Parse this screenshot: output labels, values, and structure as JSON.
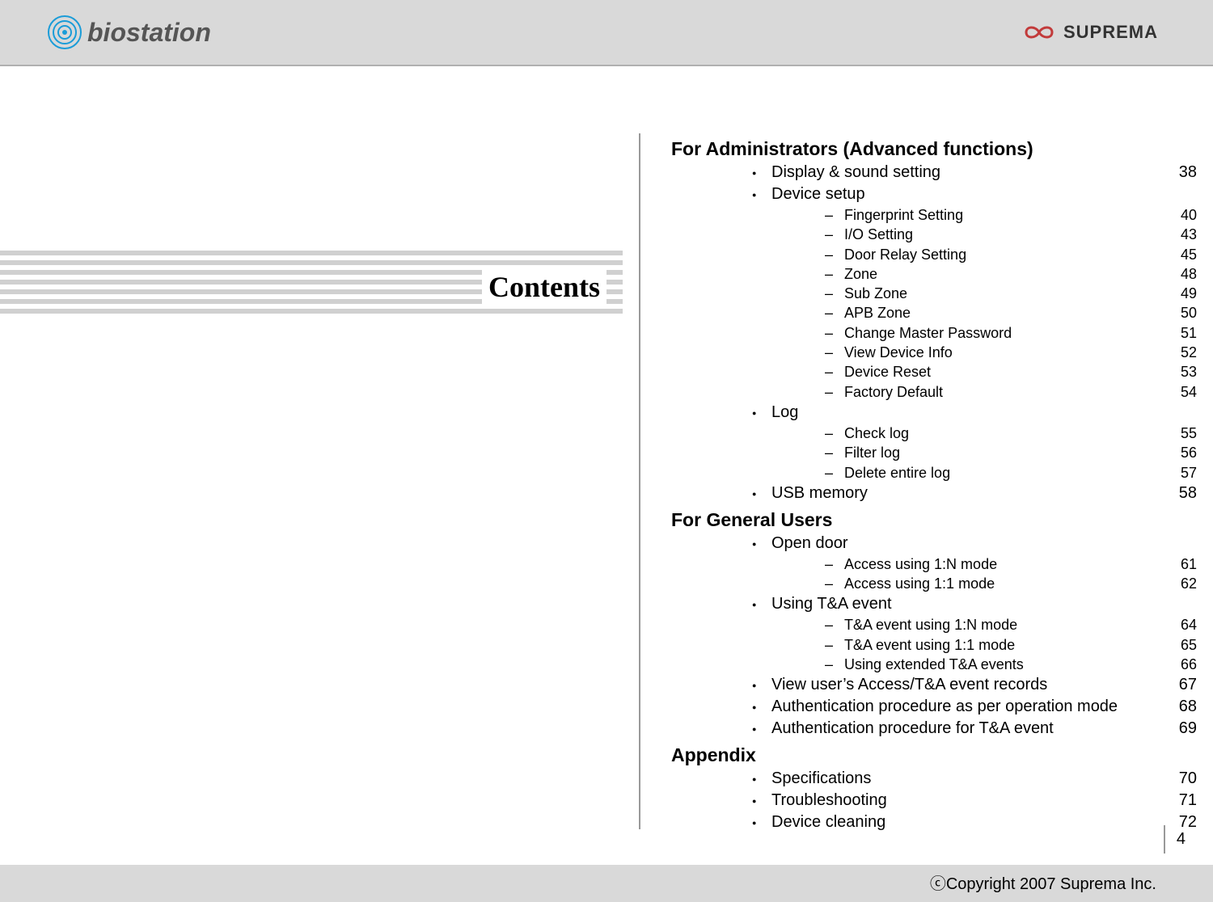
{
  "header": {
    "logo_left_text": "biostation",
    "logo_right_text": "SUPREMA"
  },
  "left_title": "Contents",
  "toc": {
    "sections": [
      {
        "title": "For Administrators (Advanced functions)",
        "items": [
          {
            "label": "Display & sound setting",
            "page": "38",
            "level": 1
          },
          {
            "label": "Device setup",
            "page": "",
            "level": 1
          },
          {
            "label": "Fingerprint Setting",
            "page": "40",
            "level": 2
          },
          {
            "label": "I/O Setting",
            "page": "43",
            "level": 2
          },
          {
            "label": "Door Relay Setting",
            "page": "45",
            "level": 2
          },
          {
            "label": "Zone",
            "page": "48",
            "level": 2
          },
          {
            "label": "Sub Zone",
            "page": "49",
            "level": 2
          },
          {
            "label": "APB Zone",
            "page": "50",
            "level": 2
          },
          {
            "label": "Change Master Password",
            "page": "51",
            "level": 2
          },
          {
            "label": "View Device Info",
            "page": "52",
            "level": 2
          },
          {
            "label": "Device Reset",
            "page": "53",
            "level": 2
          },
          {
            "label": "Factory Default",
            "page": "54",
            "level": 2
          },
          {
            "label": "Log",
            "page": "",
            "level": 1
          },
          {
            "label": "Check log",
            "page": "55",
            "level": 2
          },
          {
            "label": "Filter log",
            "page": "56",
            "level": 2
          },
          {
            "label": "Delete entire log",
            "page": "57",
            "level": 2
          },
          {
            "label": "USB memory",
            "page": "58",
            "level": 1
          }
        ]
      },
      {
        "title": "For General Users",
        "items": [
          {
            "label": "Open door",
            "page": "",
            "level": 1
          },
          {
            "label": "Access using 1:N mode",
            "page": "61",
            "level": 2
          },
          {
            "label": "Access using 1:1 mode",
            "page": "62",
            "level": 2
          },
          {
            "label": "Using T&A event",
            "page": "",
            "level": 1
          },
          {
            "label": "T&A event using 1:N mode",
            "page": "64",
            "level": 2
          },
          {
            "label": "T&A event using 1:1 mode",
            "page": "65",
            "level": 2
          },
          {
            "label": "Using extended T&A events",
            "page": "66",
            "level": 2
          },
          {
            "label": "View user’s Access/T&A event records",
            "page": "67",
            "level": 1
          },
          {
            "label": "Authentication procedure as per operation mode",
            "page": "68",
            "level": 1
          },
          {
            "label": "Authentication procedure for T&A event",
            "page": "69",
            "level": 1
          }
        ]
      },
      {
        "title": "Appendix",
        "items": [
          {
            "label": "Specifications",
            "page": "70",
            "level": 1
          },
          {
            "label": "Troubleshooting",
            "page": "71",
            "level": 1
          },
          {
            "label": "Device cleaning",
            "page": "72",
            "level": 1
          }
        ]
      }
    ]
  },
  "footer": {
    "copyright": "ⓒCopyright 2007 Suprema Inc.",
    "page_number": "4"
  },
  "colors": {
    "header_bg": "#d9d9d9",
    "stripe": "#d0d0d0",
    "divider": "#999999",
    "logo_left_accent": "#1a9cd8",
    "logo_right_accent": "#c23b3b"
  }
}
